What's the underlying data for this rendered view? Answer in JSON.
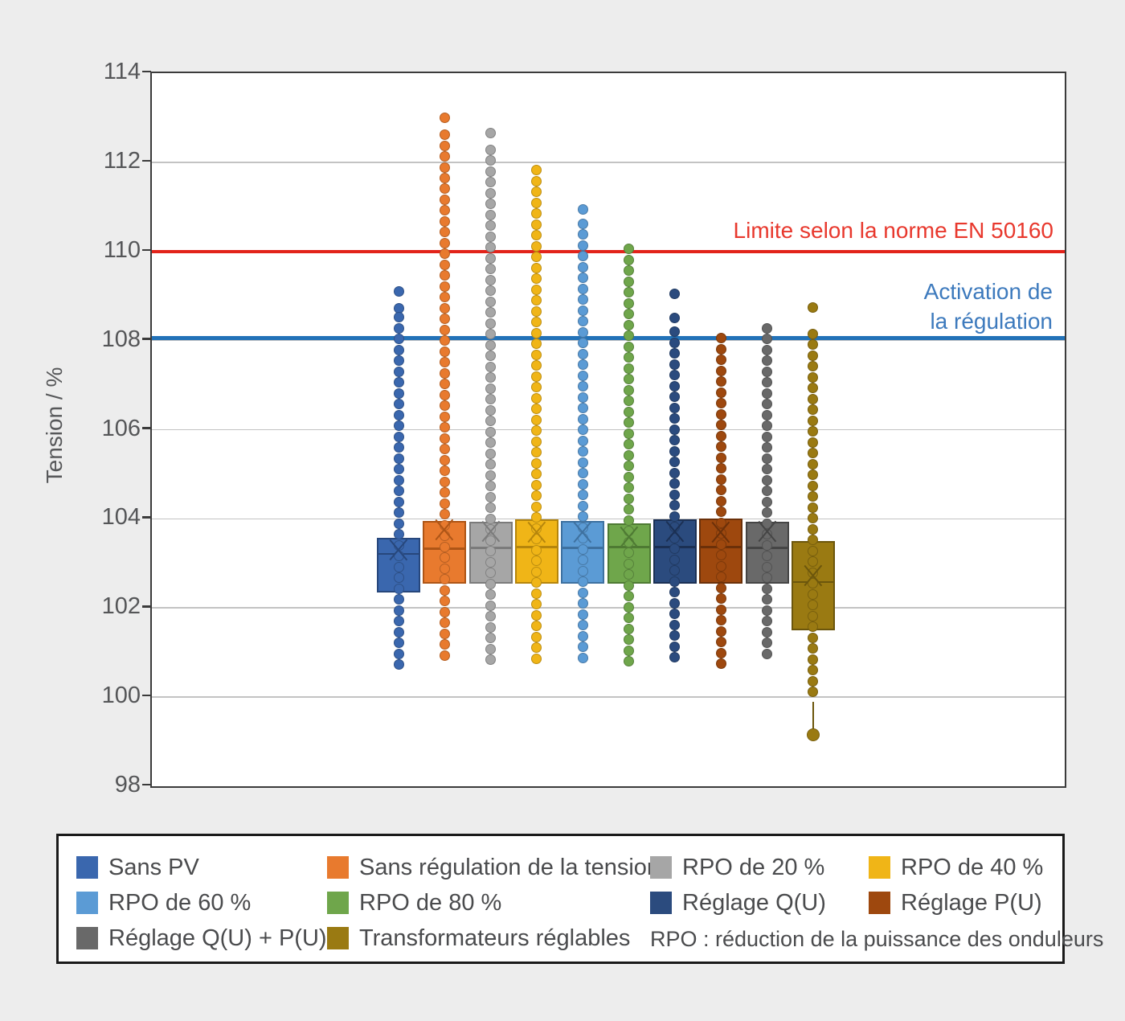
{
  "chart_data": {
    "type": "box",
    "title": "",
    "ylabel": "Tension / %",
    "ylim": [
      98,
      114
    ],
    "y_ticks": [
      98,
      100,
      102,
      104,
      106,
      108,
      110,
      112,
      114
    ],
    "grid": true,
    "legend_position": "bottom",
    "reference_lines": [
      {
        "label": "Limite selon la norme EN 50160",
        "value": 110,
        "line_color": "#e2231a",
        "text_color": "#e8382d"
      },
      {
        "label_lines": [
          "Activation de",
          "la régulation"
        ],
        "value": 108.06,
        "line_color": "#2272b8",
        "text_color": "#3d7abd"
      }
    ],
    "series": [
      {
        "name": "Sans PV",
        "color": "#3a67ae",
        "edge": "#27477c",
        "q1": 102.35,
        "median": 103.21,
        "q3": 103.58,
        "mean": 103.3,
        "strip_top": 108.28,
        "strip_bottom": 100.7,
        "isolated": [
          109.1,
          108.72,
          108.52
        ]
      },
      {
        "name": "Sans régulation de la tension",
        "color": "#e87a2e",
        "edge": "#ae5516",
        "q1": 102.55,
        "median": 103.33,
        "q3": 103.96,
        "mean": 103.75,
        "strip_top": 112.62,
        "strip_bottom": 100.7,
        "isolated": [
          113.0
        ]
      },
      {
        "name": "RPO de 20 %",
        "color": "#a6a6a6",
        "edge": "#7b7b7b",
        "q1": 102.54,
        "median": 103.35,
        "q3": 103.93,
        "mean": 103.72,
        "strip_top": 112.28,
        "strip_bottom": 100.7,
        "isolated": [
          112.65
        ]
      },
      {
        "name": "RPO de 40 %",
        "color": "#f0b517",
        "edge": "#b5850c",
        "q1": 102.55,
        "median": 103.37,
        "q3": 103.99,
        "mean": 103.7,
        "strip_top": 111.82,
        "strip_bottom": 100.7,
        "isolated": []
      },
      {
        "name": "RPO de 60 %",
        "color": "#5b9bd5",
        "edge": "#3e71a0",
        "q1": 102.55,
        "median": 103.35,
        "q3": 103.96,
        "mean": 103.7,
        "strip_top": 110.62,
        "strip_bottom": 100.7,
        "isolated": [
          110.95
        ]
      },
      {
        "name": "RPO de 80 %",
        "color": "#6fa64b",
        "edge": "#4e7a33",
        "q1": 102.55,
        "median": 103.37,
        "q3": 103.9,
        "mean": 103.6,
        "strip_top": 110.05,
        "strip_bottom": 100.7,
        "isolated": []
      },
      {
        "name": "Réglage Q(U)",
        "color": "#2b4b7e",
        "edge": "#1b3054",
        "q1": 102.55,
        "median": 103.37,
        "q3": 103.98,
        "mean": 103.72,
        "strip_top": 108.2,
        "strip_bottom": 100.7,
        "isolated": [
          109.05,
          108.5
        ]
      },
      {
        "name": "Réglage P(U)",
        "color": "#9e480e",
        "edge": "#6b3009",
        "q1": 102.55,
        "median": 103.37,
        "q3": 104.0,
        "mean": 103.7,
        "strip_top": 108.05,
        "strip_bottom": 100.7,
        "isolated": []
      },
      {
        "name": "Réglage Q(U) + P(U)",
        "color": "#696969",
        "edge": "#454545",
        "q1": 102.55,
        "median": 103.35,
        "q3": 103.93,
        "mean": 103.72,
        "strip_top": 108.28,
        "strip_bottom": 100.75,
        "isolated": []
      },
      {
        "name": "Transformateurs réglables",
        "color": "#9a7a12",
        "edge": "#6c560c",
        "q1": 101.5,
        "median": 102.58,
        "q3": 103.5,
        "mean": 102.72,
        "strip_top": 108.15,
        "strip_bottom": 99.9,
        "isolated": [
          108.75
        ],
        "whisker_low": {
          "dot": 99.15
        }
      }
    ]
  },
  "legend": {
    "note": "RPO : réduction de la puissance des onduleurs"
  }
}
